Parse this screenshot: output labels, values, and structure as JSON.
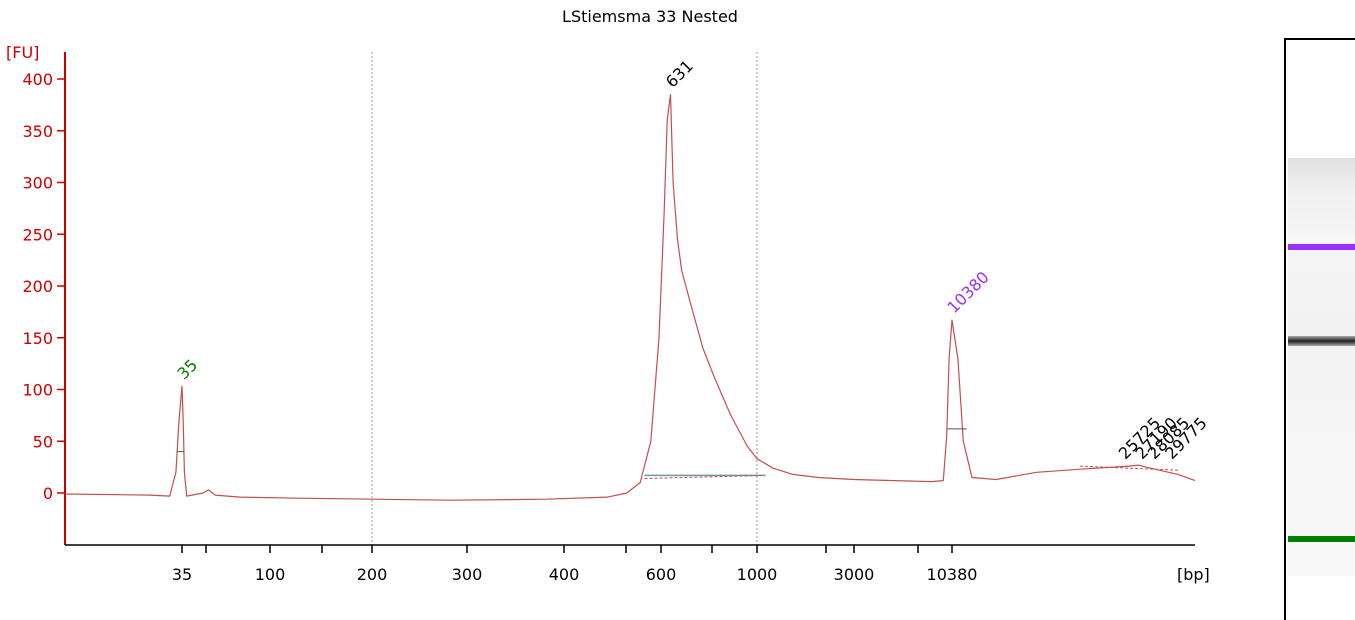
{
  "chart_data": {
    "type": "line",
    "title": "LStiemsma 33 Nested",
    "ylabel": "[FU]",
    "xlabel": "[bp]",
    "ylim": [
      -50,
      420
    ],
    "y_ticks": [
      0,
      50,
      100,
      150,
      200,
      250,
      300,
      350,
      400
    ],
    "x_tick_labels": [
      "35",
      "100",
      "200",
      "300",
      "400",
      "600",
      "1000",
      "3000",
      "10380"
    ],
    "x_tick_positions_bp": [
      35,
      100,
      200,
      300,
      400,
      600,
      1000,
      3000,
      10380
    ],
    "x_grid_bp": [
      200,
      1000
    ],
    "series": [
      {
        "color": "#c0504d",
        "points": [
          [
            20,
            -1
          ],
          [
            30,
            -2
          ],
          [
            33,
            -3
          ],
          [
            34,
            20
          ],
          [
            34.5,
            70
          ],
          [
            35,
            103
          ],
          [
            35.5,
            70
          ],
          [
            36,
            20
          ],
          [
            37,
            -3
          ],
          [
            45,
            0
          ],
          [
            48,
            3
          ],
          [
            52,
            -2
          ],
          [
            70,
            -4
          ],
          [
            120,
            -5
          ],
          [
            200,
            -6
          ],
          [
            280,
            -7
          ],
          [
            380,
            -6
          ],
          [
            480,
            -4
          ],
          [
            520,
            0
          ],
          [
            550,
            10
          ],
          [
            575,
            50
          ],
          [
            595,
            150
          ],
          [
            610,
            270
          ],
          [
            620,
            360
          ],
          [
            631,
            385
          ],
          [
            640,
            300
          ],
          [
            655,
            245
          ],
          [
            670,
            215
          ],
          [
            700,
            185
          ],
          [
            750,
            140
          ],
          [
            800,
            110
          ],
          [
            870,
            75
          ],
          [
            950,
            45
          ],
          [
            1000,
            33
          ],
          [
            1200,
            24
          ],
          [
            1500,
            18
          ],
          [
            2000,
            15
          ],
          [
            3000,
            13
          ],
          [
            5000,
            12
          ],
          [
            8000,
            11
          ],
          [
            9300,
            12
          ],
          [
            9700,
            55
          ],
          [
            10000,
            130
          ],
          [
            10380,
            167
          ],
          [
            10700,
            130
          ],
          [
            11000,
            50
          ],
          [
            11500,
            15
          ],
          [
            13000,
            13
          ],
          [
            16000,
            20
          ],
          [
            20000,
            23
          ],
          [
            25725,
            26
          ],
          [
            27000,
            27
          ],
          [
            28000,
            25
          ],
          [
            30000,
            22
          ],
          [
            33000,
            18
          ],
          [
            36000,
            12
          ]
        ]
      }
    ],
    "peak_labels": [
      {
        "text": "35",
        "bp": 35,
        "fu": 103,
        "color": "#008000"
      },
      {
        "text": "631",
        "bp": 631,
        "fu": 385,
        "color": "#000000"
      },
      {
        "text": "10380",
        "bp": 10380,
        "fu": 167,
        "color": "#9b30ff"
      },
      {
        "text": "25725",
        "bp": 25725,
        "fu": 26,
        "color": "#000000"
      },
      {
        "text": "27190",
        "bp": 27190,
        "fu": 26,
        "color": "#000000"
      },
      {
        "text": "28085",
        "bp": 28085,
        "fu": 26,
        "color": "#000000"
      },
      {
        "text": "29775",
        "bp": 29775,
        "fu": 26,
        "color": "#000000"
      }
    ],
    "gel_markers": [
      {
        "name": "upper-marker",
        "color": "#9b30ff",
        "bp": 10380
      },
      {
        "name": "sample-band",
        "color": "#222222",
        "bp": 631
      },
      {
        "name": "lower-marker",
        "color": "#008000",
        "bp": 35
      }
    ],
    "colors": {
      "axis": "#cc0000",
      "trace": "#c0504d",
      "grid": "#999999",
      "baseline": "#6a9a9a"
    }
  }
}
